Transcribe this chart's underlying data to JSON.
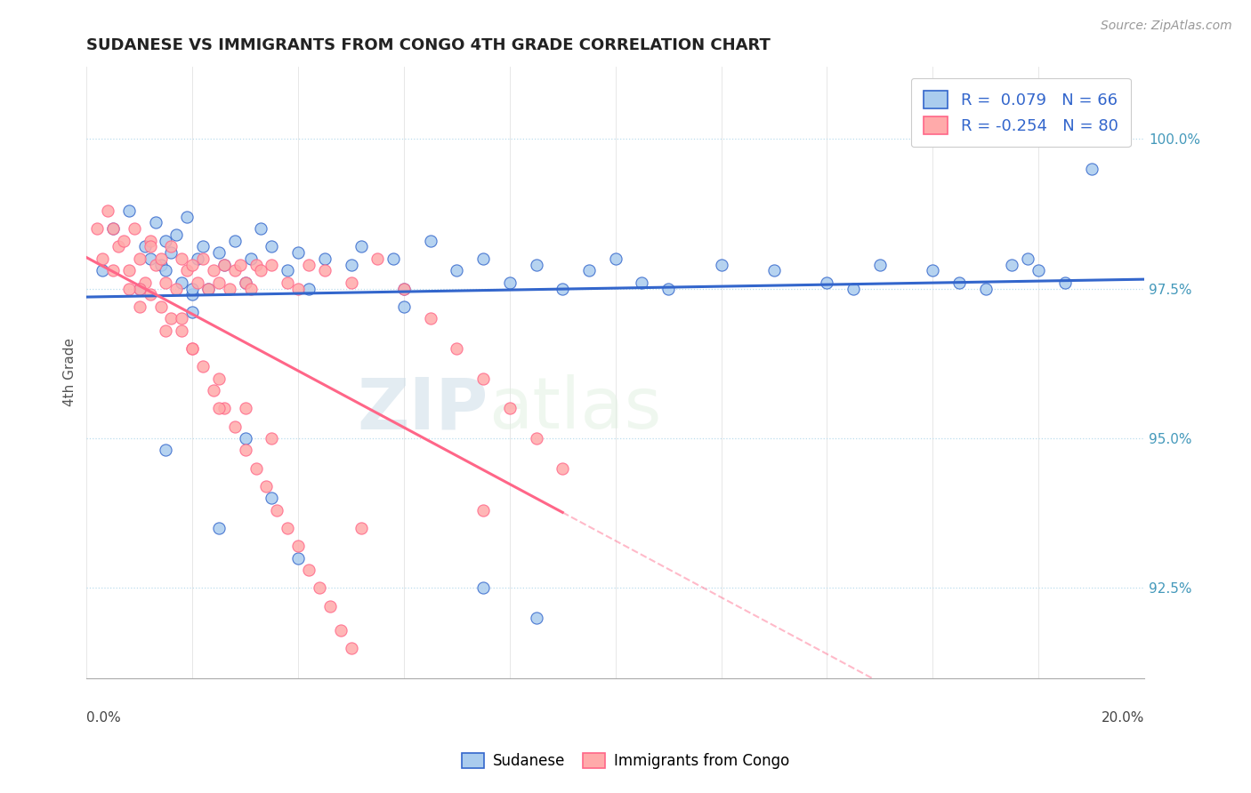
{
  "title": "SUDANESE VS IMMIGRANTS FROM CONGO 4TH GRADE CORRELATION CHART",
  "source_text": "Source: ZipAtlas.com",
  "ylabel": "4th Grade",
  "xlim": [
    0.0,
    20.0
  ],
  "ylim": [
    91.0,
    101.2
  ],
  "legend_r1": "R =  0.079",
  "legend_n1": "N = 66",
  "legend_r2": "R = -0.254",
  "legend_n2": "N = 80",
  "blue_color": "#AACCEE",
  "pink_color": "#FFAAAA",
  "trend_blue": "#3366CC",
  "trend_pink": "#FF6688",
  "watermark_zip": "ZIP",
  "watermark_atlas": "atlas",
  "blue_scatter_x": [
    0.3,
    0.5,
    0.8,
    1.0,
    1.1,
    1.2,
    1.3,
    1.4,
    1.5,
    1.5,
    1.6,
    1.7,
    1.8,
    1.9,
    2.0,
    2.1,
    2.2,
    2.3,
    2.5,
    2.6,
    2.8,
    3.0,
    3.1,
    3.3,
    3.5,
    3.8,
    4.0,
    4.2,
    4.5,
    5.0,
    5.2,
    5.8,
    6.0,
    6.5,
    7.0,
    7.5,
    8.0,
    8.5,
    9.0,
    9.5,
    10.0,
    10.5,
    11.0,
    12.0,
    13.0,
    14.0,
    14.5,
    15.0,
    16.0,
    16.5,
    17.0,
    17.5,
    18.0,
    18.5,
    19.0,
    6.0,
    2.0,
    1.5,
    3.0,
    2.5,
    3.5,
    4.0,
    7.5,
    8.5,
    17.8,
    2.0
  ],
  "blue_scatter_y": [
    97.8,
    98.5,
    98.8,
    97.5,
    98.2,
    98.0,
    98.6,
    97.9,
    98.3,
    97.8,
    98.1,
    98.4,
    97.6,
    98.7,
    97.4,
    98.0,
    98.2,
    97.5,
    98.1,
    97.9,
    98.3,
    97.6,
    98.0,
    98.5,
    98.2,
    97.8,
    98.1,
    97.5,
    98.0,
    97.9,
    98.2,
    98.0,
    97.5,
    98.3,
    97.8,
    98.0,
    97.6,
    97.9,
    97.5,
    97.8,
    98.0,
    97.6,
    97.5,
    97.9,
    97.8,
    97.6,
    97.5,
    97.9,
    97.8,
    97.6,
    97.5,
    97.9,
    97.8,
    97.6,
    99.5,
    97.2,
    97.1,
    94.8,
    95.0,
    93.5,
    94.0,
    93.0,
    92.5,
    92.0,
    98.0,
    97.5
  ],
  "pink_scatter_x": [
    0.2,
    0.4,
    0.6,
    0.8,
    0.9,
    1.0,
    1.1,
    1.2,
    1.3,
    1.4,
    1.5,
    1.6,
    1.7,
    1.8,
    1.9,
    2.0,
    2.1,
    2.2,
    2.3,
    2.4,
    2.5,
    2.6,
    2.7,
    2.8,
    2.9,
    3.0,
    3.1,
    3.2,
    3.3,
    3.5,
    3.8,
    4.0,
    4.2,
    4.5,
    5.0,
    0.5,
    0.7,
    1.0,
    1.2,
    1.4,
    1.6,
    1.8,
    2.0,
    2.2,
    2.4,
    2.6,
    2.8,
    3.0,
    3.2,
    3.4,
    3.6,
    3.8,
    4.0,
    4.2,
    4.4,
    4.6,
    4.8,
    5.0,
    5.5,
    6.0,
    6.5,
    7.0,
    7.5,
    8.0,
    8.5,
    9.0,
    0.3,
    0.5,
    0.8,
    1.0,
    1.5,
    2.0,
    2.5,
    3.0,
    3.5,
    7.5,
    1.2,
    1.8,
    2.5,
    5.2
  ],
  "pink_scatter_y": [
    98.5,
    98.8,
    98.2,
    97.8,
    98.5,
    98.0,
    97.6,
    98.3,
    97.9,
    98.0,
    97.6,
    98.2,
    97.5,
    98.0,
    97.8,
    97.9,
    97.6,
    98.0,
    97.5,
    97.8,
    97.6,
    97.9,
    97.5,
    97.8,
    97.9,
    97.6,
    97.5,
    97.9,
    97.8,
    97.9,
    97.6,
    97.5,
    97.9,
    97.8,
    97.6,
    98.5,
    98.3,
    97.5,
    97.4,
    97.2,
    97.0,
    96.8,
    96.5,
    96.2,
    95.8,
    95.5,
    95.2,
    94.8,
    94.5,
    94.2,
    93.8,
    93.5,
    93.2,
    92.8,
    92.5,
    92.2,
    91.8,
    91.5,
    98.0,
    97.5,
    97.0,
    96.5,
    96.0,
    95.5,
    95.0,
    94.5,
    98.0,
    97.8,
    97.5,
    97.2,
    96.8,
    96.5,
    96.0,
    95.5,
    95.0,
    93.8,
    98.2,
    97.0,
    95.5,
    93.5
  ]
}
